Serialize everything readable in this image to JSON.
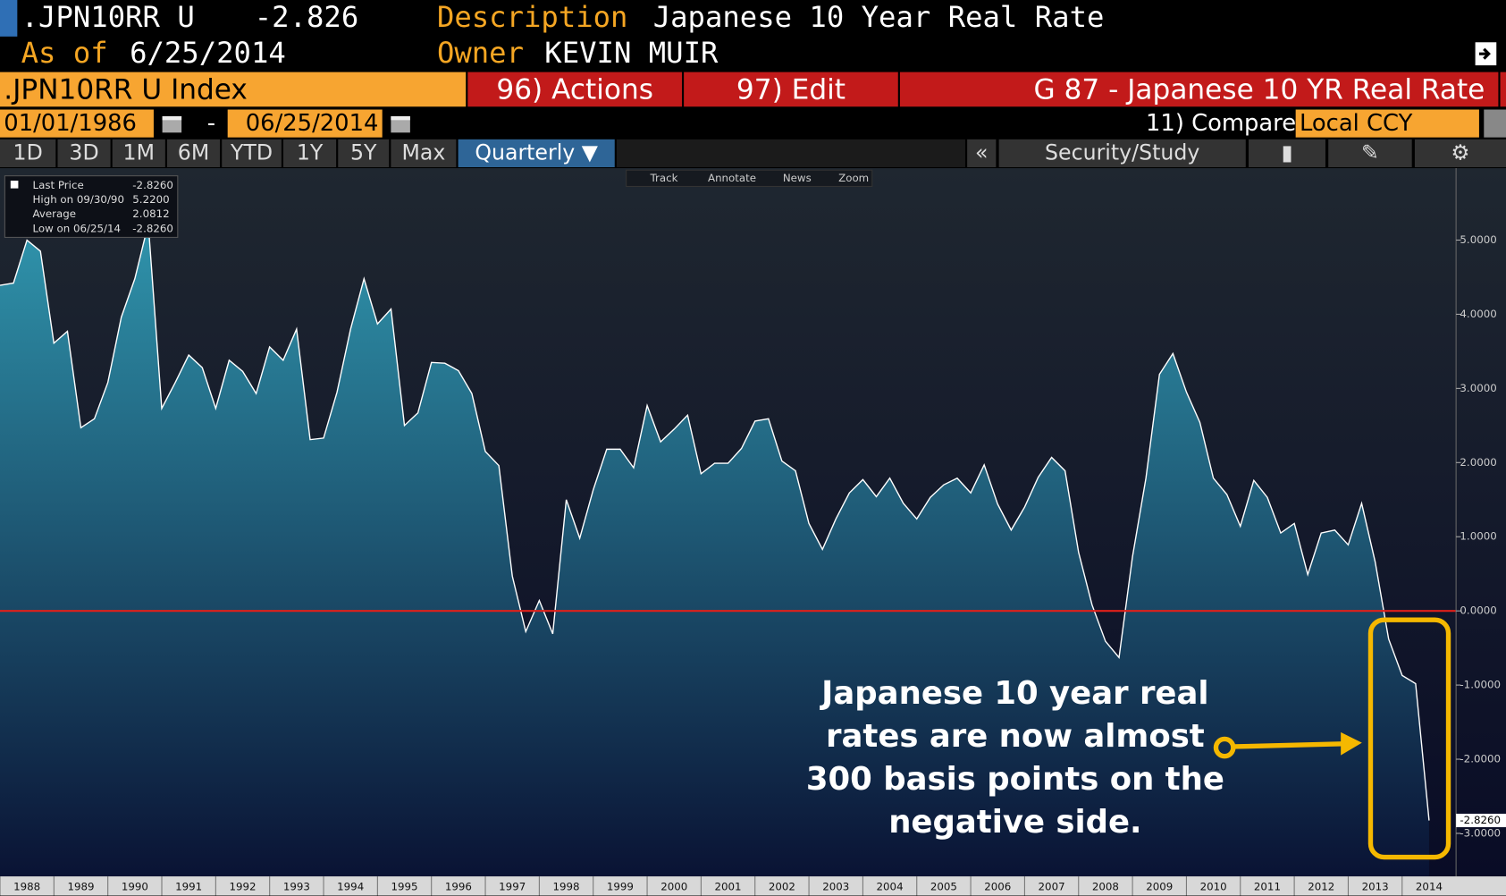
{
  "header": {
    "ticker": ".JPN10RR U",
    "price": "-2.826",
    "description_label": "Description",
    "description": "Japanese 10 Year Real Rate",
    "as_of_label": "As of",
    "as_of": "6/25/2014",
    "owner_label": "Owner",
    "owner": "KEVIN MUIR"
  },
  "title_bar": {
    "security": ".JPN10RR U Index",
    "actions": "96) Actions",
    "edit": "97) Edit",
    "page_title": "G 87 - Japanese 10 YR Real Rate"
  },
  "date_range": {
    "start": "01/01/1986",
    "separator": "-",
    "end": "06/25/2014",
    "compare": "11) Compare",
    "currency": "Local CCY"
  },
  "periods": [
    "1D",
    "3D",
    "1M",
    "6M",
    "YTD",
    "1Y",
    "5Y",
    "Max"
  ],
  "frequency": "Quarterly",
  "collapse": "«",
  "security_study": "Security/Study",
  "chart_tools": [
    "Track",
    "Annotate",
    "News",
    "Zoom"
  ],
  "chart_data": {
    "type": "area",
    "x": [
      1988,
      1988.25,
      1988.5,
      1988.75,
      1989,
      1989.25,
      1989.5,
      1989.75,
      1990,
      1990.25,
      1990.5,
      1990.75,
      1991,
      1991.25,
      1991.5,
      1991.75,
      1992,
      1992.25,
      1992.5,
      1992.75,
      1993,
      1993.25,
      1993.5,
      1993.75,
      1994,
      1994.25,
      1994.5,
      1994.75,
      1995,
      1995.25,
      1995.5,
      1995.75,
      1996,
      1996.25,
      1996.5,
      1996.75,
      1997,
      1997.25,
      1997.5,
      1997.75,
      1998,
      1998.25,
      1998.5,
      1998.75,
      1999,
      1999.25,
      1999.5,
      1999.75,
      2000,
      2000.25,
      2000.5,
      2000.75,
      2001,
      2001.25,
      2001.5,
      2001.75,
      2002,
      2002.25,
      2002.5,
      2002.75,
      2003,
      2003.25,
      2003.5,
      2003.75,
      2004,
      2004.25,
      2004.5,
      2004.75,
      2005,
      2005.25,
      2005.5,
      2005.75,
      2006,
      2006.25,
      2006.5,
      2006.75,
      2007,
      2007.25,
      2007.5,
      2007.75,
      2008,
      2008.25,
      2008.5,
      2008.75,
      2009,
      2009.25,
      2009.5,
      2009.75,
      2010,
      2010.25,
      2010.5,
      2010.75,
      2011,
      2011.25,
      2011.5,
      2011.75,
      2012,
      2012.25,
      2012.5,
      2012.75,
      2013,
      2013.25,
      2013.5,
      2013.75,
      2014,
      2014.25,
      2014.5
    ],
    "values": [
      4.39,
      4.42,
      5.0,
      4.85,
      3.61,
      3.77,
      2.47,
      2.59,
      3.08,
      3.96,
      4.48,
      5.22,
      2.73,
      3.08,
      3.45,
      3.28,
      2.73,
      3.38,
      3.23,
      2.93,
      3.56,
      3.38,
      3.8,
      2.31,
      2.33,
      2.95,
      3.8,
      4.48,
      3.87,
      4.07,
      2.5,
      2.67,
      3.35,
      3.34,
      3.24,
      2.93,
      2.15,
      1.96,
      0.47,
      -0.28,
      0.14,
      -0.31,
      1.5,
      0.98,
      1.63,
      2.18,
      2.18,
      1.93,
      2.77,
      2.28,
      2.45,
      2.64,
      1.85,
      1.99,
      1.99,
      2.19,
      2.56,
      2.59,
      2.02,
      1.89,
      1.18,
      0.83,
      1.24,
      1.59,
      1.77,
      1.54,
      1.79,
      1.45,
      1.24,
      1.53,
      1.7,
      1.79,
      1.59,
      1.97,
      1.44,
      1.09,
      1.4,
      1.8,
      2.07,
      1.89,
      0.79,
      0.08,
      -0.41,
      -0.63,
      0.73,
      1.79,
      3.19,
      3.47,
      2.95,
      2.54,
      1.79,
      1.57,
      1.14,
      1.76,
      1.53,
      1.05,
      1.18,
      0.49,
      1.05,
      1.09,
      0.89,
      1.45,
      0.66,
      -0.38,
      -0.87,
      -0.98,
      -2.826
    ],
    "color": "#ffffff",
    "fill_top": "#2f93ab",
    "fill_bottom": "#0a1334",
    "xlim": [
      1988,
      2015
    ],
    "xticks": [
      1988,
      1989,
      1990,
      1991,
      1992,
      1993,
      1994,
      1995,
      1996,
      1997,
      1998,
      1999,
      2000,
      2001,
      2002,
      2003,
      2004,
      2005,
      2006,
      2007,
      2008,
      2009,
      2010,
      2011,
      2012,
      2013,
      2014
    ],
    "ylim": [
      -3.58,
      5.97
    ],
    "yticks": [
      {
        "value": 5,
        "label": "5.0000"
      },
      {
        "value": 4,
        "label": "4.0000"
      },
      {
        "value": 3,
        "label": "3.0000"
      },
      {
        "value": 2,
        "label": "2.0000"
      },
      {
        "value": 1,
        "label": "1.0000"
      },
      {
        "value": 0,
        "label": "0.0000"
      },
      {
        "value": -1,
        "label": "-1.0000"
      },
      {
        "value": -2,
        "label": "-2.0000"
      },
      {
        "value": -3,
        "label": "-3.0000"
      }
    ],
    "grid": false,
    "ref_line": {
      "value": 0,
      "color": "#e0201a"
    },
    "last_value": -2.826,
    "stats": [
      {
        "label": "Last Price",
        "value": "-2.8260"
      },
      {
        "label": "High on 09/30/90",
        "value": "5.2200"
      },
      {
        "label": "Average",
        "value": "2.0812"
      },
      {
        "label": "Low on 06/25/14",
        "value": "-2.8260"
      }
    ]
  },
  "annotation": {
    "lines": [
      "Japanese 10 year real",
      "rates are now almost",
      "300 basis points on the",
      "negative side."
    ]
  }
}
